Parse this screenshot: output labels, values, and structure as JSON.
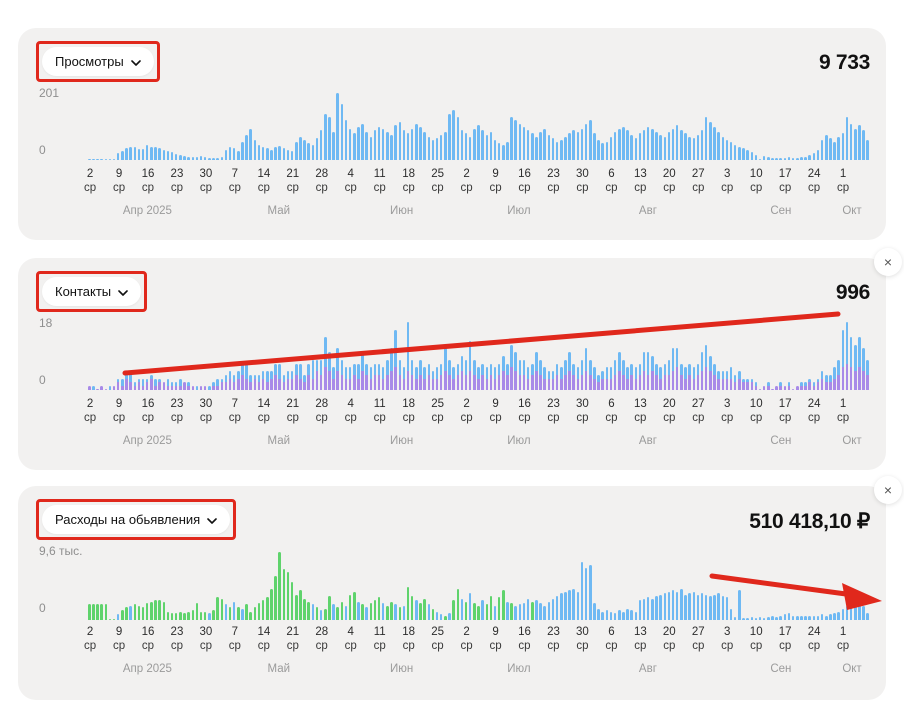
{
  "colors": {
    "panel_bg": "#f2f1f0",
    "bar_blue": "#6fb9f3",
    "bar_purple": "#a88ae8",
    "bar_green": "#5fd36c",
    "annotation_red": "#e0281c",
    "text_dark": "#111111",
    "text_gray": "#8f8f8f"
  },
  "axis": {
    "tick_dates": [
      "2",
      "9",
      "16",
      "23",
      "30",
      "7",
      "14",
      "21",
      "28",
      "4",
      "11",
      "18",
      "25",
      "2",
      "9",
      "16",
      "23",
      "30",
      "6",
      "13",
      "20",
      "27",
      "3",
      "10",
      "17",
      "24",
      "1"
    ],
    "tick_sub": "ср",
    "months": [
      {
        "label": "Апр 2025",
        "pct": 7.6
      },
      {
        "label": "Май",
        "pct": 24.4
      },
      {
        "label": "Июн",
        "pct": 40.1
      },
      {
        "label": "Июл",
        "pct": 55.1
      },
      {
        "label": "Авг",
        "pct": 71.6
      },
      {
        "label": "Сен",
        "pct": 88.6
      },
      {
        "label": "Окт",
        "pct": 97.7
      }
    ]
  },
  "close_label": "×",
  "panels": [
    {
      "dropdown_label": "Просмотры",
      "total": "9 733",
      "y_max_label": "201",
      "y_min_label": "0",
      "chart_data": {
        "type": "bar",
        "title": "Просмотры",
        "ylim": [
          0,
          201
        ],
        "x_week_labels": [
          "2",
          "9",
          "16",
          "23",
          "30",
          "7",
          "14",
          "21",
          "28",
          "4",
          "11",
          "18",
          "25",
          "2",
          "9",
          "16",
          "23",
          "30",
          "6",
          "13",
          "20",
          "27",
          "3",
          "10",
          "17",
          "24",
          "1"
        ],
        "weekday": "ср",
        "months": [
          "Апр 2025",
          "Май",
          "Июн",
          "Июл",
          "Авг",
          "Сен",
          "Окт"
        ],
        "ymax": 205,
        "values": [
          3,
          2,
          2,
          3,
          2,
          3,
          4,
          20,
          28,
          35,
          40,
          38,
          32,
          32,
          45,
          40,
          38,
          35,
          30,
          28,
          25,
          18,
          15,
          12,
          10,
          8,
          10,
          12,
          8,
          6,
          5,
          6,
          8,
          30,
          40,
          35,
          28,
          55,
          75,
          95,
          60,
          45,
          40,
          35,
          30,
          38,
          42,
          35,
          30,
          28,
          55,
          70,
          60,
          50,
          45,
          65,
          90,
          140,
          130,
          85,
          201,
          170,
          120,
          95,
          80,
          100,
          110,
          85,
          70,
          90,
          100,
          95,
          85,
          75,
          105,
          115,
          90,
          80,
          95,
          110,
          100,
          85,
          70,
          60,
          65,
          75,
          85,
          140,
          150,
          130,
          90,
          80,
          70,
          95,
          105,
          90,
          75,
          85,
          60,
          50,
          45,
          55,
          130,
          120,
          110,
          100,
          90,
          80,
          70,
          85,
          95,
          75,
          65,
          55,
          60,
          70,
          80,
          90,
          85,
          95,
          110,
          120,
          80,
          60,
          50,
          55,
          70,
          85,
          95,
          100,
          90,
          75,
          65,
          80,
          90,
          100,
          95,
          85,
          75,
          70,
          85,
          95,
          105,
          90,
          80,
          70,
          65,
          75,
          90,
          130,
          115,
          100,
          85,
          70,
          60,
          55,
          45,
          40,
          35,
          30,
          25,
          15,
          0,
          12,
          8,
          6,
          5,
          5,
          6,
          8,
          5,
          6,
          8,
          10,
          15,
          20,
          30,
          60,
          75,
          65,
          55,
          70,
          80,
          130,
          110,
          95,
          105,
          90,
          60
        ]
      }
    },
    {
      "dropdown_label": "Контакты",
      "total": "996",
      "y_max_label": "18",
      "y_min_label": "0",
      "chart_data": {
        "type": "bar",
        "stacked": true,
        "title": "Контакты",
        "ylim": [
          0,
          18
        ],
        "x_week_labels": [
          "2",
          "9",
          "16",
          "23",
          "30",
          "7",
          "14",
          "21",
          "28",
          "4",
          "11",
          "18",
          "25",
          "2",
          "9",
          "16",
          "23",
          "30",
          "6",
          "13",
          "20",
          "27",
          "3",
          "10",
          "17",
          "24",
          "1"
        ],
        "weekday": "ср",
        "months": [
          "Апр 2025",
          "Май",
          "Июн",
          "Июл",
          "Авг",
          "Сен",
          "Окт"
        ],
        "ymax": 18,
        "series": [
          {
            "name": "purple",
            "values": [
              1,
              0,
              0,
              1,
              0,
              0,
              1,
              2,
              1,
              3,
              2,
              1,
              2,
              1,
              2,
              3,
              1,
              2,
              2,
              1,
              1,
              1,
              1,
              2,
              1,
              1,
              0,
              1,
              1,
              0,
              1,
              1,
              2,
              2,
              3,
              2,
              3,
              4,
              3,
              2,
              3,
              2,
              3,
              2,
              3,
              4,
              3,
              2,
              3,
              3,
              4,
              3,
              2,
              4,
              3,
              5,
              4,
              6,
              5,
              3,
              5,
              4,
              3,
              3,
              4,
              3,
              5,
              4,
              3,
              4,
              4,
              3,
              4,
              5,
              6,
              4,
              3,
              5,
              4,
              3,
              4,
              3,
              4,
              3,
              3,
              4,
              5,
              4,
              3,
              4,
              5,
              4,
              5,
              4,
              3,
              4,
              3,
              4,
              3,
              4,
              5,
              4,
              6,
              5,
              4,
              4,
              3,
              4,
              5,
              4,
              3,
              3,
              3,
              4,
              3,
              4,
              5,
              4,
              3,
              4,
              5,
              4,
              3,
              2,
              3,
              3,
              3,
              4,
              5,
              4,
              3,
              4,
              3,
              4,
              5,
              4,
              5,
              4,
              3,
              4,
              4,
              5,
              6,
              4,
              3,
              4,
              3,
              4,
              5,
              6,
              5,
              4,
              3,
              3,
              3,
              3,
              2,
              3,
              2,
              2,
              2,
              1,
              0,
              1,
              1,
              0,
              1,
              1,
              1,
              1,
              0,
              1,
              1,
              1,
              2,
              1,
              2,
              3,
              2,
              2,
              3,
              4,
              6,
              7,
              6,
              5,
              6,
              5,
              4
            ]
          },
          {
            "name": "blue",
            "values": [
              0,
              1,
              0,
              0,
              0,
              1,
              0,
              1,
              2,
              2,
              3,
              1,
              1,
              2,
              1,
              1,
              2,
              1,
              0,
              2,
              1,
              1,
              2,
              0,
              1,
              0,
              1,
              0,
              0,
              1,
              1,
              2,
              1,
              2,
              2,
              2,
              2,
              3,
              4,
              2,
              1,
              2,
              2,
              3,
              2,
              3,
              4,
              2,
              2,
              2,
              3,
              4,
              2,
              3,
              5,
              3,
              4,
              8,
              5,
              3,
              6,
              4,
              3,
              3,
              3,
              4,
              5,
              3,
              3,
              3,
              3,
              3,
              4,
              6,
              10,
              4,
              3,
              13,
              4,
              3,
              4,
              3,
              3,
              2,
              3,
              3,
              6,
              4,
              3,
              3,
              4,
              4,
              8,
              4,
              3,
              3,
              3,
              3,
              3,
              3,
              4,
              3,
              6,
              5,
              4,
              4,
              3,
              3,
              5,
              4,
              3,
              2,
              2,
              3,
              3,
              4,
              5,
              3,
              3,
              4,
              6,
              4,
              3,
              2,
              2,
              3,
              3,
              4,
              5,
              4,
              3,
              3,
              3,
              3,
              5,
              6,
              4,
              3,
              3,
              3,
              4,
              6,
              5,
              3,
              3,
              3,
              3,
              3,
              5,
              6,
              4,
              3,
              2,
              2,
              2,
              3,
              2,
              2,
              1,
              1,
              1,
              1,
              0,
              0,
              1,
              0,
              0,
              1,
              0,
              1,
              0,
              0,
              1,
              1,
              1,
              1,
              1,
              2,
              2,
              2,
              3,
              4,
              10,
              11,
              8,
              7,
              8,
              6,
              4
            ]
          }
        ]
      }
    },
    {
      "dropdown_label": "Расходы на обьявления",
      "total": "510 418,10 ₽",
      "y_max_label": "9,6 тыс.",
      "y_min_label": "0",
      "chart_data": {
        "type": "bar",
        "title": "Расходы на обьявления",
        "ylabel": "тыс. ₽",
        "ylim": [
          0,
          9.6
        ],
        "x_week_labels": [
          "2",
          "9",
          "16",
          "23",
          "30",
          "7",
          "14",
          "21",
          "28",
          "4",
          "11",
          "18",
          "25",
          "2",
          "9",
          "16",
          "23",
          "30",
          "6",
          "13",
          "20",
          "27",
          "3",
          "10",
          "17",
          "24",
          "1"
        ],
        "weekday": "ср",
        "months": [
          "Апр 2025",
          "Май",
          "Июн",
          "Июл",
          "Авг",
          "Сен",
          "Окт"
        ],
        "ymax": 9.6,
        "values": [
          2.2,
          2.3,
          2.2,
          2.3,
          2.2,
          0.2,
          0.1,
          0.8,
          1.4,
          1.8,
          2.0,
          2.2,
          2.0,
          1.8,
          2.4,
          2.6,
          2.8,
          2.8,
          2.6,
          1.2,
          1.0,
          1.0,
          1.1,
          1.0,
          1.2,
          1.4,
          2.4,
          1.2,
          1.2,
          1.0,
          1.4,
          3.2,
          3.0,
          2.2,
          1.8,
          2.6,
          1.8,
          1.6,
          2.2,
          1.2,
          1.8,
          2.4,
          2.8,
          3.2,
          4.4,
          6.2,
          9.6,
          7.2,
          6.8,
          5.4,
          3.6,
          4.2,
          3.0,
          2.6,
          2.2,
          1.8,
          1.4,
          1.6,
          3.4,
          2.2,
          1.8,
          2.6,
          2.0,
          3.6,
          4.0,
          2.6,
          2.2,
          1.8,
          2.4,
          2.8,
          3.2,
          2.4,
          2.0,
          2.6,
          2.2,
          1.8,
          2.0,
          4.6,
          3.4,
          2.8,
          2.4,
          3.0,
          2.2,
          1.6,
          1.2,
          0.8,
          0.6,
          1.0,
          2.8,
          4.4,
          3.0,
          2.6,
          3.8,
          2.4,
          2.0,
          2.8,
          2.2,
          3.4,
          2.0,
          3.2,
          4.2,
          2.6,
          2.4,
          2.0,
          2.2,
          2.4,
          3.0,
          2.6,
          2.8,
          2.4,
          2.0,
          2.6,
          3.0,
          3.4,
          3.8,
          4.0,
          4.2,
          4.4,
          4.0,
          8.2,
          7.4,
          7.8,
          2.4,
          1.6,
          1.2,
          1.4,
          1.2,
          1.0,
          1.4,
          1.2,
          1.6,
          1.4,
          1.2,
          2.8,
          3.0,
          3.2,
          3.0,
          3.4,
          3.6,
          3.8,
          4.0,
          4.2,
          4.0,
          4.4,
          3.6,
          3.8,
          4.0,
          3.6,
          3.8,
          3.6,
          3.4,
          3.6,
          3.8,
          3.4,
          3.2,
          1.6,
          0.4,
          4.2,
          0.3,
          0.3,
          0.4,
          0.3,
          0.4,
          0.3,
          0.4,
          0.5,
          0.4,
          0.6,
          0.8,
          1.0,
          0.6,
          0.5,
          0.6,
          0.5,
          0.6,
          0.5,
          0.6,
          0.8,
          0.6,
          0.8,
          1.0,
          1.2,
          1.6,
          2.0,
          2.4,
          2.2,
          2.6,
          2.0,
          1.0
        ],
        "colors": [
          "g",
          "g",
          "g",
          "g",
          "g",
          "g",
          "g",
          "b",
          "g",
          "g",
          "b",
          "g",
          "g",
          "g",
          "g",
          "g",
          "g",
          "g",
          "g",
          "g",
          "g",
          "g",
          "g",
          "g",
          "g",
          "g",
          "g",
          "g",
          "g",
          "b",
          "g",
          "g",
          "g",
          "b",
          "g",
          "b",
          "g",
          "b",
          "g",
          "g",
          "g",
          "g",
          "g",
          "g",
          "g",
          "g",
          "g",
          "g",
          "g",
          "g",
          "g",
          "g",
          "g",
          "g",
          "b",
          "g",
          "b",
          "g",
          "g",
          "b",
          "g",
          "g",
          "b",
          "g",
          "g",
          "b",
          "g",
          "b",
          "g",
          "g",
          "g",
          "b",
          "g",
          "g",
          "b",
          "g",
          "b",
          "g",
          "g",
          "b",
          "g",
          "g",
          "b",
          "g",
          "b",
          "b",
          "g",
          "b",
          "g",
          "g",
          "b",
          "g",
          "b",
          "g",
          "g",
          "b",
          "g",
          "g",
          "b",
          "g",
          "g",
          "b",
          "g",
          "b",
          "b",
          "b",
          "b",
          "g",
          "b",
          "b",
          "b",
          "b",
          "b",
          "b",
          "b",
          "b",
          "b",
          "b",
          "b",
          "b",
          "b",
          "b",
          "b",
          "b",
          "b",
          "b",
          "b",
          "b",
          "b",
          "b",
          "b",
          "b",
          "b",
          "b",
          "b",
          "b",
          "b",
          "b",
          "b",
          "b",
          "b",
          "b",
          "b",
          "b",
          "b",
          "b",
          "b",
          "b",
          "b",
          "b",
          "b",
          "b",
          "b",
          "b",
          "b",
          "b",
          "b",
          "b",
          "b",
          "b",
          "b",
          "b",
          "b",
          "b",
          "b",
          "b",
          "b",
          "b",
          "b",
          "b",
          "b",
          "b",
          "b",
          "b",
          "b",
          "b",
          "b",
          "b",
          "b",
          "b",
          "b",
          "b",
          "b",
          "b",
          "b",
          "b",
          "b",
          "b",
          "b"
        ]
      }
    }
  ]
}
